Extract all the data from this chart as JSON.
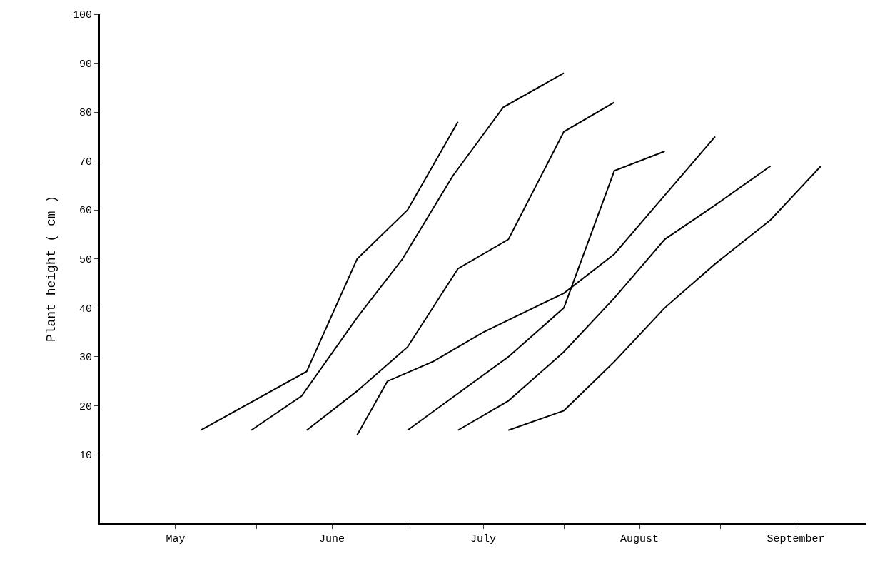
{
  "chart_data": {
    "type": "line",
    "ylabel": "Plant height ( cm )",
    "xlim": [
      "--05-01",
      "--09-30"
    ],
    "ylim": [
      -4,
      100
    ],
    "xticks": [
      {
        "value": "--05-16",
        "label": "May"
      },
      {
        "value": "--06-01",
        "label": null
      },
      {
        "value": "--06-16",
        "label": "June"
      },
      {
        "value": "--07-01",
        "label": null
      },
      {
        "value": "--07-16",
        "label": "July"
      },
      {
        "value": "--08-01",
        "label": null
      },
      {
        "value": "--08-16",
        "label": "August"
      },
      {
        "value": "--09-01",
        "label": null
      },
      {
        "value": "--09-16",
        "label": "September"
      }
    ],
    "yticks": [
      10,
      20,
      30,
      40,
      50,
      60,
      70,
      80,
      90,
      100
    ],
    "grid": false,
    "marker": "none",
    "line_style": "solid",
    "series": [
      {
        "color": "#000000",
        "x": [
          "--05-21",
          "--06-11",
          "--06-21",
          "--07-01",
          "--07-11"
        ],
        "values": [
          15,
          27,
          50,
          60,
          78
        ]
      },
      {
        "color": "#000000",
        "x": [
          "--05-31",
          "--06-10",
          "--06-21",
          "--06-30",
          "--07-10",
          "--07-20",
          "--08-01"
        ],
        "values": [
          15,
          22,
          38,
          50,
          67,
          81,
          88
        ]
      },
      {
        "color": "#000000",
        "x": [
          "--06-11",
          "--06-21",
          "--07-01",
          "--07-11",
          "--07-21",
          "--08-01",
          "--08-11"
        ],
        "values": [
          15,
          23,
          32,
          48,
          54,
          76,
          82
        ]
      },
      {
        "color": "#000000",
        "x": [
          "--06-21",
          "--06-27",
          "--07-06",
          "--07-16",
          "--08-01",
          "--08-11",
          "--08-21",
          "--08-31"
        ],
        "values": [
          14,
          25,
          29,
          35,
          43,
          51,
          63,
          75
        ]
      },
      {
        "color": "#000000",
        "x": [
          "--07-01",
          "--07-21",
          "--08-01",
          "--08-11",
          "--08-21"
        ],
        "values": [
          15,
          30,
          40,
          68,
          72
        ]
      },
      {
        "color": "#000000",
        "x": [
          "--07-11",
          "--07-21",
          "--08-01",
          "--08-11",
          "--08-21",
          "--08-31",
          "--09-11"
        ],
        "values": [
          15,
          21,
          31,
          42,
          54,
          61,
          69
        ]
      },
      {
        "color": "#000000",
        "x": [
          "--07-21",
          "--08-01",
          "--08-11",
          "--08-21",
          "--08-31",
          "--09-11",
          "--09-21"
        ],
        "values": [
          15,
          19,
          29,
          40,
          49,
          58,
          69
        ]
      }
    ]
  }
}
